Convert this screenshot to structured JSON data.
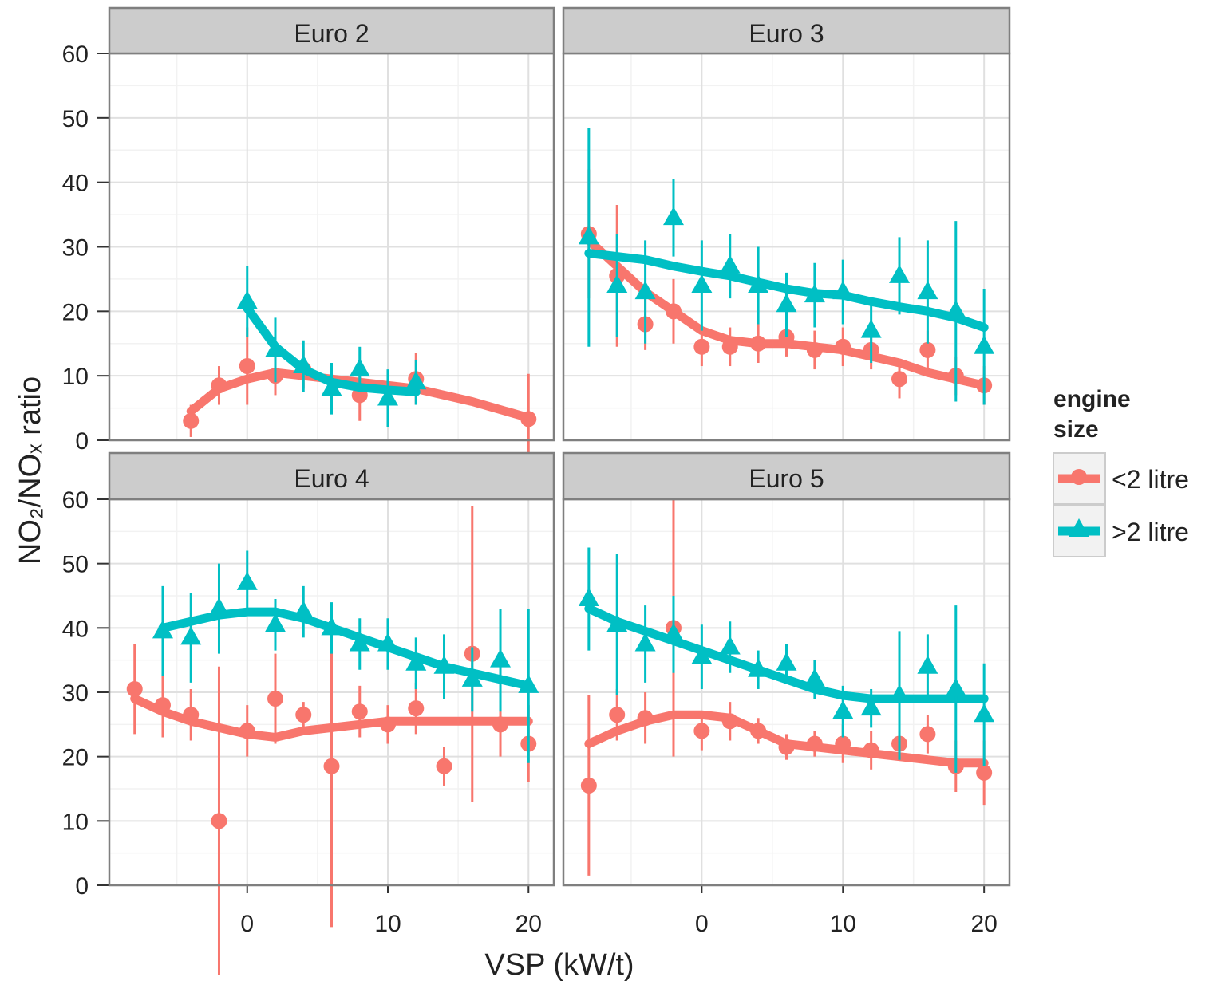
{
  "chart_data": [
    {
      "type": "scatter",
      "title": "Euro 2",
      "x_label": "VSP (kW/t)",
      "y_label": "NO₂/NOₓ ratio",
      "legend_title": "engine size",
      "xlim": [
        -9.8,
        21.8
      ],
      "xticks": [
        0,
        10,
        20
      ],
      "ylim": [
        0,
        60
      ],
      "yticks": [
        0,
        10,
        20,
        30,
        40,
        50,
        60
      ],
      "grid": true,
      "series": [
        {
          "name": "<2 litre",
          "color": "#f8766d",
          "x": [
            -4,
            -2,
            0,
            2,
            4,
            8,
            12,
            20
          ],
          "values": [
            3,
            8.5,
            11.5,
            10,
            11,
            7,
            9.5,
            3.3
          ],
          "errors": [
            2.5,
            3,
            6,
            3,
            3,
            4,
            4,
            7
          ],
          "fit_x": [
            -4,
            -2,
            0,
            2,
            4,
            8,
            12,
            16,
            20
          ],
          "fit": [
            4.5,
            8,
            9.5,
            10.5,
            10,
            9,
            8,
            6,
            3.5
          ]
        },
        {
          "name": ">2 litre",
          "color": "#00bfc4",
          "x": [
            0,
            2,
            4,
            6,
            8,
            10,
            12
          ],
          "values": [
            21.5,
            14,
            11.5,
            8,
            11,
            6.5,
            9
          ],
          "errors": [
            5.5,
            5,
            4,
            4,
            3.5,
            4.5,
            3.5
          ],
          "fit_x": [
            0,
            2,
            4,
            6,
            8,
            10,
            12
          ],
          "fit": [
            20.5,
            14.5,
            11,
            9,
            8.2,
            7.8,
            7.5
          ]
        }
      ]
    },
    {
      "type": "scatter",
      "title": "Euro 3",
      "xlim": [
        -9.8,
        21.8
      ],
      "xticks": [
        0,
        10,
        20
      ],
      "ylim": [
        0,
        60
      ],
      "yticks": [
        0,
        10,
        20,
        30,
        40,
        50,
        60
      ],
      "grid": true,
      "series": [
        {
          "color": "#f8766d",
          "x": [
            -8,
            -6,
            -4,
            -2,
            0,
            2,
            4,
            6,
            8,
            10,
            12,
            14,
            16,
            18,
            20
          ],
          "values": [
            32,
            25.5,
            18,
            20,
            14.5,
            14.5,
            15,
            16,
            14,
            14.5,
            14,
            9.5,
            14,
            10,
            8.5
          ],
          "errors": [
            10,
            11,
            4,
            5,
            3,
            3,
            3,
            3,
            3,
            3,
            3,
            3,
            3,
            3,
            3
          ],
          "fit_x": [
            -8,
            -6,
            -4,
            -2,
            0,
            2,
            4,
            6,
            8,
            10,
            12,
            14,
            16,
            18,
            20
          ],
          "fit": [
            31,
            27,
            23,
            20,
            17,
            15.5,
            15,
            15,
            14.5,
            14,
            13,
            12,
            10.5,
            9.5,
            8.5
          ]
        },
        {
          "color": "#00bfc4",
          "x": [
            -8,
            -6,
            -4,
            -2,
            0,
            2,
            4,
            6,
            8,
            10,
            12,
            14,
            16,
            18,
            20
          ],
          "values": [
            31.5,
            24,
            23,
            34.5,
            24,
            27,
            24,
            21,
            22.5,
            23,
            17,
            25.5,
            23,
            20,
            14.5
          ],
          "errors": [
            17,
            8,
            8,
            6,
            7,
            5,
            6,
            5,
            5,
            5,
            5,
            6,
            8,
            14,
            9
          ],
          "fit_x": [
            -8,
            -6,
            -4,
            -2,
            0,
            2,
            4,
            6,
            8,
            10,
            12,
            14,
            16,
            18,
            20
          ],
          "fit": [
            29,
            28.5,
            28,
            27,
            26.2,
            25.5,
            24.5,
            23.5,
            22.8,
            22.5,
            21.5,
            20.7,
            20,
            19,
            17.5
          ]
        }
      ]
    },
    {
      "type": "scatter",
      "title": "Euro 4",
      "xlim": [
        -9.8,
        21.8
      ],
      "xticks": [
        0,
        10,
        20
      ],
      "ylim": [
        0,
        60
      ],
      "yticks": [
        0,
        10,
        20,
        30,
        40,
        50,
        60
      ],
      "grid": true,
      "series": [
        {
          "color": "#f8766d",
          "x": [
            -8,
            -6,
            -4,
            -2,
            0,
            2,
            4,
            6,
            8,
            10,
            12,
            14,
            16,
            18,
            20
          ],
          "values": [
            30.5,
            28,
            26.5,
            10,
            24,
            29,
            26.5,
            18.5,
            27,
            25,
            27.5,
            18.5,
            36,
            25,
            22
          ],
          "errors": [
            7,
            5,
            4,
            24,
            4,
            7,
            2,
            25,
            4,
            3,
            4,
            3,
            23,
            5,
            6
          ],
          "fit_x": [
            -8,
            -6,
            -4,
            -2,
            0,
            2,
            4,
            6,
            8,
            10,
            12,
            14,
            16,
            18,
            20
          ],
          "fit": [
            29,
            27,
            25.5,
            24.5,
            23.5,
            23,
            24,
            24.5,
            25,
            25.5,
            25.5,
            25.5,
            25.5,
            25.5,
            25.5
          ]
        },
        {
          "color": "#00bfc4",
          "x": [
            -6,
            -4,
            -2,
            0,
            2,
            4,
            6,
            8,
            10,
            12,
            14,
            16,
            18,
            20
          ],
          "values": [
            39.5,
            38.5,
            43,
            47,
            40.5,
            42.5,
            40,
            37.5,
            37.5,
            34.5,
            34,
            32,
            35,
            31
          ],
          "errors": [
            7,
            7,
            7,
            5,
            4,
            4,
            4,
            4,
            4,
            4,
            5,
            5,
            8,
            12
          ],
          "fit_x": [
            -6,
            -4,
            -2,
            0,
            2,
            4,
            6,
            8,
            10,
            12,
            14,
            16,
            18,
            20
          ],
          "fit": [
            40,
            41,
            42,
            42.5,
            42.5,
            41.5,
            40,
            38.5,
            37,
            35.5,
            34,
            33,
            32,
            31
          ]
        }
      ]
    },
    {
      "type": "scatter",
      "title": "Euro 5",
      "xlim": [
        -9.8,
        21.8
      ],
      "xticks": [
        0,
        10,
        20
      ],
      "ylim": [
        0,
        60
      ],
      "yticks": [
        0,
        10,
        20,
        30,
        40,
        50,
        60
      ],
      "grid": true,
      "series": [
        {
          "color": "#f8766d",
          "x": [
            -8,
            -6,
            -4,
            -2,
            0,
            2,
            4,
            6,
            8,
            10,
            12,
            14,
            16,
            18,
            20
          ],
          "values": [
            15.5,
            26.5,
            26,
            40,
            24,
            25.5,
            24,
            21.5,
            22,
            22,
            21,
            22,
            23.5,
            18.5,
            17.5
          ],
          "errors": [
            14,
            4,
            4,
            20,
            3,
            3,
            2,
            2,
            2,
            3,
            3,
            2,
            3,
            4,
            5
          ],
          "fit_x": [
            -8,
            -6,
            -4,
            -2,
            0,
            2,
            4,
            6,
            8,
            10,
            12,
            14,
            16,
            18,
            20
          ],
          "fit": [
            22,
            24,
            25.5,
            26.5,
            26.5,
            26,
            24,
            22,
            21.5,
            21,
            20.5,
            20,
            19.5,
            19,
            19
          ]
        },
        {
          "color": "#00bfc4",
          "x": [
            -8,
            -6,
            -4,
            -2,
            0,
            2,
            4,
            6,
            8,
            10,
            12,
            14,
            16,
            18,
            20
          ],
          "values": [
            44.5,
            40.5,
            37.5,
            39,
            35.5,
            37,
            33.5,
            34.5,
            32,
            27,
            27.5,
            29.5,
            34,
            30.5,
            26.5
          ],
          "errors": [
            8,
            11,
            6,
            6,
            5,
            4,
            3,
            3,
            3,
            4,
            3,
            10,
            5,
            13,
            8
          ],
          "fit_x": [
            -8,
            -6,
            -4,
            -2,
            0,
            2,
            4,
            6,
            8,
            10,
            12,
            14,
            16,
            18,
            20
          ],
          "fit": [
            43,
            41,
            39.5,
            38,
            36.5,
            35,
            33.5,
            32,
            30.5,
            29.5,
            29,
            29,
            29,
            29,
            29
          ]
        }
      ]
    }
  ]
}
